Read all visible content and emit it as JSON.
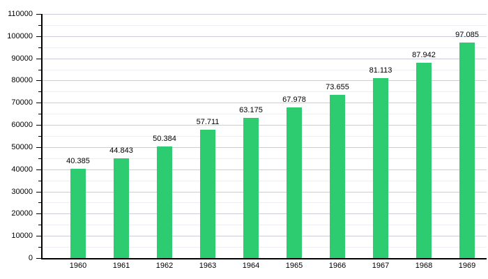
{
  "chart_data": {
    "type": "bar",
    "title": "",
    "categories": [
      "1960",
      "1961",
      "1962",
      "1963",
      "1964",
      "1965",
      "1966",
      "1967",
      "1968",
      "1969"
    ],
    "values": [
      40385,
      44843,
      50384,
      57711,
      63175,
      67978,
      73655,
      81113,
      87942,
      97085
    ],
    "value_labels": [
      "40.385",
      "44.843",
      "50.384",
      "57.711",
      "63.175",
      "67.978",
      "73.655",
      "81.113",
      "87.942",
      "97.085"
    ],
    "xlabel": "",
    "ylabel": "",
    "ylim": [
      0,
      110000
    ],
    "y_major_step": 10000,
    "y_minor_step": 5000,
    "y_tick_labels": [
      "0",
      "10000",
      "20000",
      "30000",
      "40000",
      "50000",
      "60000",
      "70000",
      "80000",
      "90000",
      "100000",
      "110000"
    ],
    "grid": "on",
    "legend": "none",
    "colors": {
      "bar": "#2ecc71",
      "grid_major": "#ccccdd",
      "grid_minor": "#ededf4",
      "axis": "#000000",
      "text": "#000000",
      "background": "#ffffff"
    }
  }
}
